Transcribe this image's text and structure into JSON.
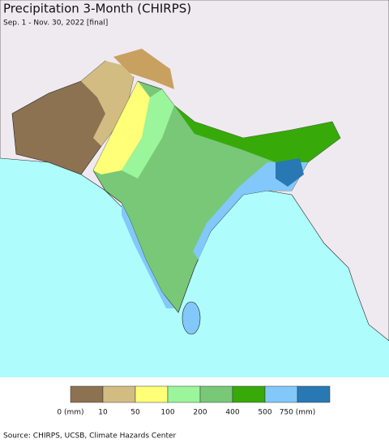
{
  "header": {
    "title": "Precipitation 3-Month (CHIRPS)",
    "subtitle": "Sep. 1 - Nov. 30, 2022 [final]"
  },
  "legend": {
    "items": [
      {
        "color": "#8c7251",
        "label": "0 (mm)"
      },
      {
        "color": "#d2bc82",
        "label": "10"
      },
      {
        "color": "#ffff78",
        "label": "50"
      },
      {
        "color": "#9bf59b",
        "label": "100"
      },
      {
        "color": "#78c878",
        "label": "200"
      },
      {
        "color": "#37aa0a",
        "label": "400"
      },
      {
        "color": "#82c8fa",
        "label": "500"
      },
      {
        "color": "#2878b4",
        "label": "750 (mm)"
      }
    ]
  },
  "footer": {
    "source": "Source: CHIRPS, UCSB, Climate Hazards Center"
  }
}
